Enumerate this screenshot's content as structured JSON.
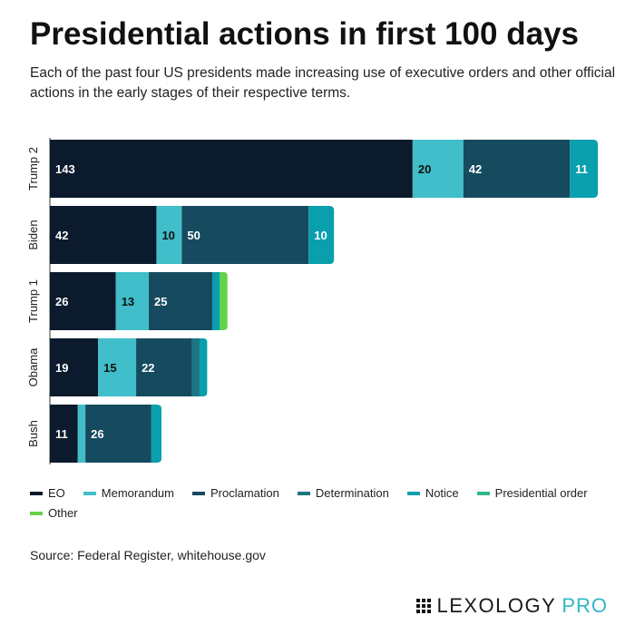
{
  "header": {
    "title": "Presidential actions in first 100 days",
    "subtitle": "Each of the past four US presidents made increasing use of executive orders and other official actions in the early stages of their respective terms."
  },
  "source": "Source: Federal Register, whitehouse.gov",
  "logo": {
    "word": "LEXOLOGY",
    "pro": "PRO"
  },
  "chart_data": {
    "type": "bar",
    "orientation": "horizontal",
    "stacked": true,
    "categories": [
      "Trump 2",
      "Biden",
      "Trump 1",
      "Obama",
      "Bush"
    ],
    "series": [
      {
        "name": "EO",
        "color": "#0b1a2c",
        "values": [
          143,
          42,
          26,
          19,
          11
        ],
        "label_color": "#ffffff"
      },
      {
        "name": "Memorandum",
        "color": "#40bec9",
        "values": [
          20,
          10,
          13,
          15,
          3
        ],
        "label_color": "#111111"
      },
      {
        "name": "Proclamation",
        "color": "#164a5f",
        "values": [
          42,
          50,
          25,
          22,
          26
        ],
        "label_color": "#ffffff"
      },
      {
        "name": "Determination",
        "color": "#1e7582",
        "values": [
          0,
          0,
          0,
          3,
          0
        ],
        "label_color": "#ffffff"
      },
      {
        "name": "Notice",
        "color": "#099fac",
        "values": [
          11,
          10,
          3,
          3,
          4
        ],
        "label_color": "#ffffff"
      },
      {
        "name": "Presidential order",
        "color": "#2dba87",
        "values": [
          0,
          0,
          0,
          0,
          0
        ],
        "label_color": "#ffffff"
      },
      {
        "name": "Other",
        "color": "#63d34a",
        "values": [
          0,
          0,
          3,
          0,
          0
        ],
        "label_color": "#ffffff"
      }
    ],
    "xlim": [
      0,
      216
    ],
    "grid": false,
    "legend_placement": "bottom"
  }
}
